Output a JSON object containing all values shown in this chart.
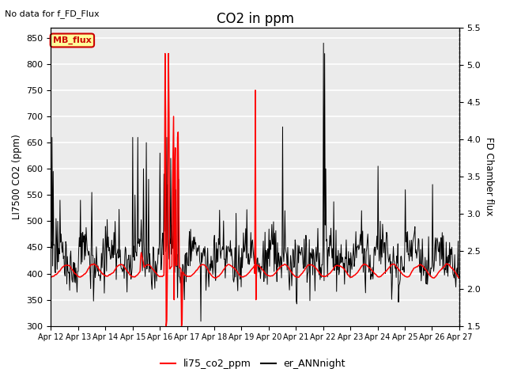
{
  "title": "CO2 in ppm",
  "annotation": "No data for f_FD_Flux",
  "ylabel_left": "LI7500 CO2 (ppm)",
  "ylabel_right": "FD Chamber flux",
  "ylim_left": [
    300,
    870
  ],
  "ylim_right": [
    1.5,
    5.5
  ],
  "yticks_left": [
    300,
    350,
    400,
    450,
    500,
    550,
    600,
    650,
    700,
    750,
    800,
    850
  ],
  "yticks_right": [
    1.5,
    2.0,
    2.5,
    3.0,
    3.5,
    4.0,
    4.5,
    5.0,
    5.5
  ],
  "xlim_days": 15,
  "xtick_labels": [
    "Apr 12",
    "Apr 13",
    "Apr 14",
    "Apr 15",
    "Apr 16",
    "Apr 17",
    "Apr 18",
    "Apr 19",
    "Apr 20",
    "Apr 21",
    "Apr 22",
    "Apr 23",
    "Apr 24",
    "Apr 25",
    "Apr 26",
    "Apr 27"
  ],
  "legend_labels": [
    "li75_co2_ppm",
    "er_ANNnight"
  ],
  "mb_flux_box_color": "#ffff99",
  "mb_flux_text_color": "#cc0000",
  "mb_flux_border_color": "#cc0000",
  "red_line_color": "red",
  "black_line_color": "black",
  "background_color": "#ebebeb",
  "grid_color": "white",
  "fig_bg": "white"
}
